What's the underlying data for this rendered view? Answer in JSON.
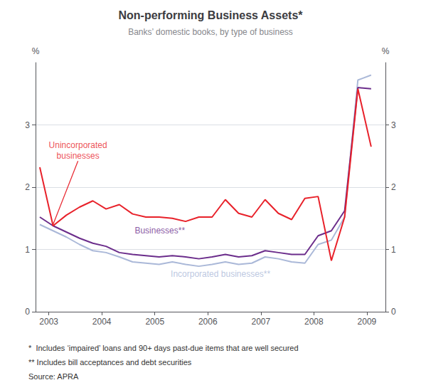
{
  "chart_data": {
    "type": "line",
    "title": "Non-performing Business Assets*",
    "subtitle": "Banks’ domestic books, by type of business",
    "ylabel": "%",
    "y2label": "%",
    "x": [
      2002.83,
      2003.08,
      2003.33,
      2003.58,
      2003.83,
      2004.08,
      2004.33,
      2004.58,
      2004.83,
      2005.08,
      2005.33,
      2005.58,
      2005.83,
      2006.08,
      2006.33,
      2006.58,
      2006.83,
      2007.08,
      2007.33,
      2007.58,
      2007.83,
      2008.08,
      2008.33,
      2008.58,
      2008.83,
      2009.08
    ],
    "xlim": [
      2002.75,
      2009.35
    ],
    "xticks": [
      2003,
      2004,
      2005,
      2006,
      2007,
      2008,
      2009
    ],
    "ylim": [
      0,
      4.0
    ],
    "yticks": [
      0,
      1,
      2,
      3
    ],
    "y2lim": [
      0,
      4.0
    ],
    "y2ticks": [
      0,
      1,
      2,
      3
    ],
    "grid": true,
    "series": [
      {
        "name": "Incorporated businesses**",
        "color": "#aab8d8",
        "values": [
          1.4,
          1.3,
          1.2,
          1.08,
          0.98,
          0.95,
          0.88,
          0.8,
          0.78,
          0.76,
          0.8,
          0.76,
          0.73,
          0.76,
          0.8,
          0.76,
          0.78,
          0.88,
          0.85,
          0.8,
          0.78,
          1.08,
          1.15,
          1.52,
          3.72,
          3.8
        ]
      },
      {
        "name": "Businesses**",
        "color": "#6b2d8b",
        "values": [
          1.52,
          1.38,
          1.28,
          1.18,
          1.1,
          1.05,
          0.95,
          0.92,
          0.9,
          0.88,
          0.9,
          0.88,
          0.85,
          0.88,
          0.92,
          0.88,
          0.9,
          0.98,
          0.95,
          0.92,
          0.92,
          1.22,
          1.3,
          1.62,
          3.6,
          3.58
        ]
      },
      {
        "name": "Unincorporated businesses",
        "color": "#e8212a",
        "values": [
          2.32,
          1.38,
          1.55,
          1.68,
          1.78,
          1.65,
          1.72,
          1.57,
          1.52,
          1.52,
          1.5,
          1.45,
          1.52,
          1.52,
          1.8,
          1.58,
          1.52,
          1.8,
          1.58,
          1.48,
          1.82,
          1.85,
          0.82,
          1.52,
          3.58,
          2.65
        ]
      }
    ],
    "annotations": [
      {
        "text": "Unincorporated\nbusinesses",
        "x": 2003.55,
        "y": 2.42,
        "xy": [
          2003.08,
          1.4
        ],
        "color": "#e8212a"
      },
      {
        "text": "Businesses**",
        "x": 2004.62,
        "y": 1.22,
        "color": "#6b2d8b"
      },
      {
        "text": "Incorporated businesses**",
        "x": 2005.3,
        "y": 0.52,
        "color": "#aab8d8"
      }
    ],
    "footnotes": [
      "*  Includes ‘impaired’ loans and 90+ days past-due items that are well secured",
      "** Includes bill acceptances and debt securities",
      "Source: APRA"
    ]
  }
}
